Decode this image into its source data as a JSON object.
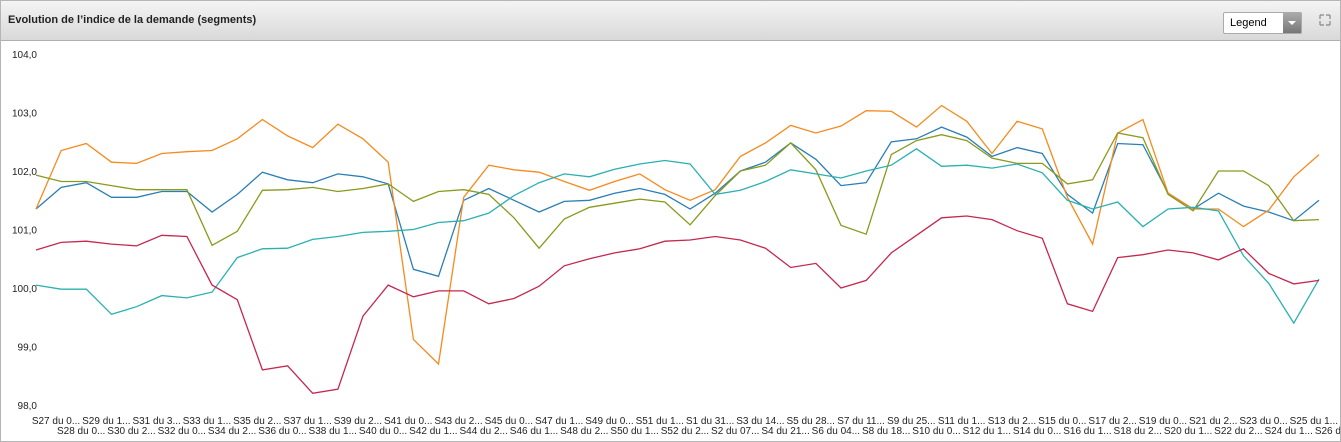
{
  "legend_button": "Legend",
  "chart_data": {
    "type": "line",
    "title": "Evolution de l’indice de la demande (segments)",
    "categories": [
      "S27 du 0...",
      "S28 du 0...",
      "S29 du 1...",
      "S30 du 2...",
      "S31 du 3...",
      "S32 du 0...",
      "S33 du 1...",
      "S34 du 2...",
      "S35 du 2...",
      "S36 du 0...",
      "S37 du 1...",
      "S38 du 1...",
      "S39 du 2...",
      "S40 du 0...",
      "S41 du 0...",
      "S42 du 1...",
      "S43 du 2...",
      "S44 du 2...",
      "S45 du 0...",
      "S46 du 1...",
      "S47 du 1...",
      "S48 du 2...",
      "S49 du 0...",
      "S50 du 1...",
      "S51 du 1...",
      "S52 du 2...",
      "S1 du 31...",
      "S2 du 07...",
      "S3 du 14...",
      "S4 du 21...",
      "S5 du 28...",
      "S6 du 04...",
      "S7 du 11...",
      "S8 du 18...",
      "S9 du 25...",
      "S10 du 0...",
      "S11 du 1...",
      "S12 du 1...",
      "S13 du 2...",
      "S14 du 0...",
      "S15 du 0...",
      "S16 du 1...",
      "S17 du 2...",
      "S18 du 2...",
      "S19 du 0...",
      "S20 du 1...",
      "S21 du 2...",
      "S22 du 2...",
      "S23 du 0...",
      "S24 du 1...",
      "S25 du 1...",
      "S26 du 2..."
    ],
    "series": [
      {
        "color": "#2a7fb5",
        "values": [
          101.35,
          101.72,
          101.8,
          101.55,
          101.55,
          101.65,
          101.65,
          101.3,
          101.6,
          101.98,
          101.85,
          101.8,
          101.95,
          101.9,
          101.78,
          100.32,
          100.2,
          101.5,
          101.7,
          101.5,
          101.3,
          101.48,
          101.5,
          101.62,
          101.7,
          101.6,
          101.35,
          101.62,
          102.0,
          102.15,
          102.48,
          102.2,
          101.75,
          101.8,
          102.5,
          102.55,
          102.75,
          102.58,
          102.25,
          102.4,
          102.3,
          101.6,
          101.28,
          102.47,
          102.45,
          101.62,
          101.35,
          101.62,
          101.4,
          101.3,
          101.15,
          101.5
        ]
      },
      {
        "color": "#f58a1f",
        "values": [
          101.35,
          102.35,
          102.47,
          102.15,
          102.13,
          102.3,
          102.33,
          102.35,
          102.55,
          102.88,
          102.6,
          102.4,
          102.8,
          102.55,
          102.15,
          99.12,
          98.7,
          101.55,
          102.1,
          102.02,
          101.98,
          101.82,
          101.67,
          101.82,
          101.95,
          101.68,
          101.5,
          101.68,
          102.25,
          102.48,
          102.78,
          102.65,
          102.77,
          103.03,
          103.02,
          102.75,
          103.12,
          102.85,
          102.3,
          102.85,
          102.72,
          101.55,
          100.75,
          102.65,
          102.88,
          101.62,
          101.35,
          101.35,
          101.05,
          101.33,
          101.9,
          102.28
        ]
      },
      {
        "color": "#8a9a1c",
        "values": [
          101.93,
          101.82,
          101.82,
          101.75,
          101.68,
          101.68,
          101.68,
          100.73,
          100.97,
          101.67,
          101.68,
          101.72,
          101.65,
          101.7,
          101.78,
          101.48,
          101.65,
          101.68,
          101.6,
          101.2,
          100.68,
          101.18,
          101.38,
          101.45,
          101.52,
          101.47,
          101.08,
          101.58,
          102.0,
          102.1,
          102.48,
          102.02,
          101.07,
          100.92,
          102.28,
          102.52,
          102.62,
          102.52,
          102.22,
          102.13,
          102.13,
          101.78,
          101.85,
          102.65,
          102.57,
          101.6,
          101.32,
          102.0,
          102.0,
          101.75,
          101.15,
          101.17
        ]
      },
      {
        "color": "#2bb0b0",
        "values": [
          100.05,
          99.98,
          99.98,
          99.55,
          99.68,
          99.87,
          99.83,
          99.93,
          100.52,
          100.67,
          100.68,
          100.83,
          100.88,
          100.95,
          100.97,
          101.0,
          101.12,
          101.15,
          101.28,
          101.58,
          101.8,
          101.95,
          101.9,
          102.03,
          102.12,
          102.18,
          102.12,
          101.6,
          101.67,
          101.82,
          102.02,
          101.95,
          101.88,
          102.0,
          102.1,
          102.38,
          102.08,
          102.1,
          102.05,
          102.12,
          101.97,
          101.5,
          101.35,
          101.47,
          101.05,
          101.35,
          101.38,
          101.32,
          100.55,
          100.08,
          99.4,
          100.15
        ]
      },
      {
        "color": "#c4284e",
        "values": [
          100.65,
          100.78,
          100.8,
          100.75,
          100.72,
          100.9,
          100.88,
          100.05,
          99.8,
          98.6,
          98.67,
          98.2,
          98.27,
          99.52,
          100.05,
          99.85,
          99.95,
          99.95,
          99.73,
          99.82,
          100.03,
          100.38,
          100.5,
          100.6,
          100.67,
          100.8,
          100.82,
          100.88,
          100.82,
          100.68,
          100.35,
          100.42,
          100.0,
          100.13,
          100.6,
          100.9,
          101.2,
          101.23,
          101.17,
          100.98,
          100.85,
          99.73,
          99.6,
          100.52,
          100.57,
          100.65,
          100.6,
          100.48,
          100.67,
          100.25,
          100.07,
          100.13
        ]
      }
    ],
    "ylim": [
      98,
      104
    ],
    "yticks": [
      {
        "value": 98,
        "label": "98,0"
      },
      {
        "value": 99,
        "label": "99,0"
      },
      {
        "value": 100,
        "label": "100,0"
      },
      {
        "value": 101,
        "label": "101,0"
      },
      {
        "value": 102,
        "label": "102,0"
      },
      {
        "value": 103,
        "label": "103,0"
      },
      {
        "value": 104,
        "label": "104,0"
      }
    ],
    "grid": false
  }
}
